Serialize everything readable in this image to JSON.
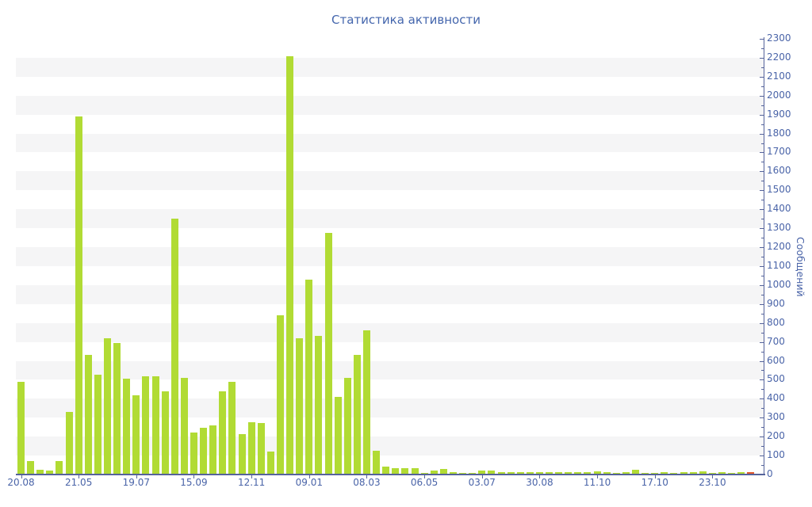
{
  "title": "Статистика активности",
  "y_axis": {
    "label": "Сообщений",
    "min": 0,
    "max": 2300,
    "major_step": 100,
    "minor_step": 50
  },
  "x_axis": {
    "tick_labels": [
      "20.08",
      "21.05",
      "19.07",
      "15.09",
      "12.11",
      "09.01",
      "08.03",
      "06.05",
      "03.07",
      "30.08",
      "11.10",
      "17.10",
      "23.10"
    ],
    "tick_every_n_bars": 6
  },
  "colors": {
    "bar": "#b1db34",
    "highlight_bar": "#e2592c",
    "axis_line": "#55639b",
    "tick_text": "#4a64a8",
    "title_text": "#4466ad",
    "stripe": "#f5f5f6",
    "background": "#ffffff"
  },
  "chart_data": {
    "type": "bar",
    "title": "Статистика активности",
    "xlabel": "",
    "ylabel": "Сообщений",
    "ylim": [
      0,
      2300
    ],
    "y_tick_step": 100,
    "y_minor_tick_step": 50,
    "y_tick_labels": [
      "0",
      "100",
      "200",
      "300",
      "400",
      "500",
      "600",
      "700",
      "800",
      "900",
      "1000",
      "1100",
      "1200",
      "1300",
      "1400",
      "1500",
      "1600",
      "1700",
      "1800",
      "1900",
      "2000",
      "2100",
      "2200",
      "2300"
    ],
    "x_tick_labels": [
      "20.08",
      "21.05",
      "19.07",
      "15.09",
      "12.11",
      "09.01",
      "08.03",
      "06.05",
      "03.07",
      "30.08",
      "11.10",
      "17.10",
      "23.10"
    ],
    "x_tick_every_n_bars": 6,
    "grid": "horizontal-stripes-every-100",
    "legend": "none",
    "bar_count": 77,
    "last_bar_highlighted": true,
    "values": [
      490,
      70,
      25,
      20,
      70,
      330,
      1890,
      630,
      525,
      720,
      695,
      505,
      420,
      520,
      520,
      440,
      1350,
      510,
      220,
      245,
      260,
      440,
      490,
      215,
      275,
      270,
      120,
      840,
      2210,
      720,
      1030,
      732,
      1275,
      410,
      510,
      630,
      760,
      125,
      40,
      35,
      35,
      33,
      10,
      21,
      29,
      13,
      8,
      8,
      21,
      20,
      13,
      13,
      13,
      13,
      13,
      13,
      13,
      13,
      13,
      13,
      17,
      13,
      7,
      13,
      26,
      10,
      10,
      13,
      10,
      13,
      13,
      17,
      7,
      13,
      10,
      13,
      13
    ]
  }
}
